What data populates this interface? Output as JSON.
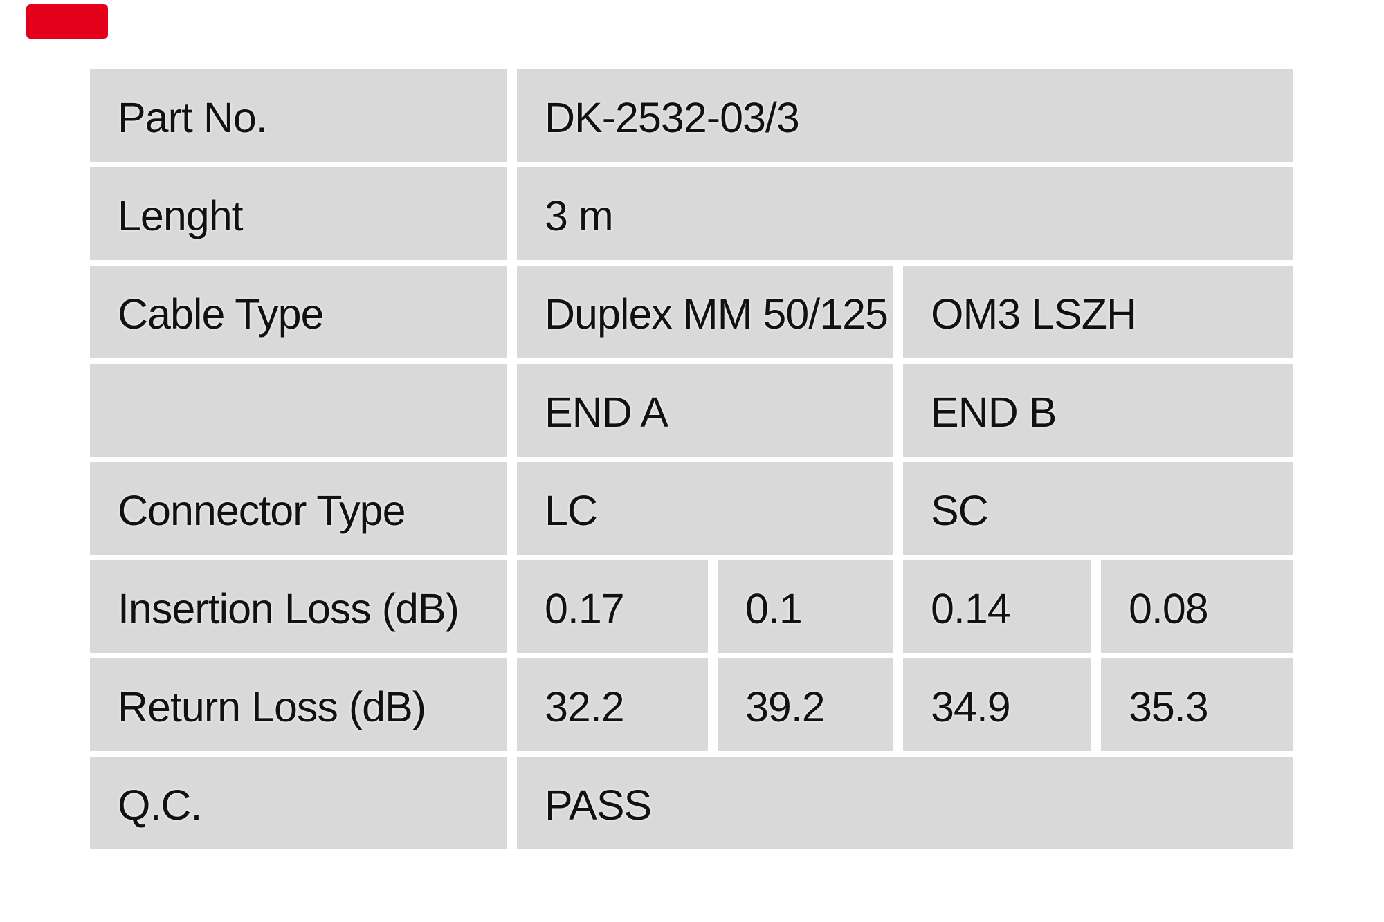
{
  "brand": {
    "logo_color": "#e2001a"
  },
  "table": {
    "cell_bg": "#d9d9d9",
    "text_color": "#111111",
    "rows": {
      "part_no": {
        "label": "Part No.",
        "value": "DK-2532-03/3"
      },
      "length": {
        "label": "Lenght",
        "value": "3 m"
      },
      "cable_type": {
        "label": "Cable Type",
        "value_a": "Duplex MM 50/125",
        "value_b": "OM3 LSZH"
      },
      "ends": {
        "label": "",
        "value_a": "END A",
        "value_b": "END B"
      },
      "connector_type": {
        "label": "Connector Type",
        "value_a": "LC",
        "value_b": "SC"
      },
      "insertion_loss": {
        "label": "Insertion Loss (dB)",
        "end_a_1": "0.17",
        "end_a_2": "0.1",
        "end_b_1": "0.14",
        "end_b_2": "0.08"
      },
      "return_loss": {
        "label": "Return Loss (dB)",
        "end_a_1": "32.2",
        "end_a_2": "39.2",
        "end_b_1": "34.9",
        "end_b_2": "35.3"
      },
      "qc": {
        "label": "Q.C.",
        "value": "PASS"
      }
    }
  }
}
